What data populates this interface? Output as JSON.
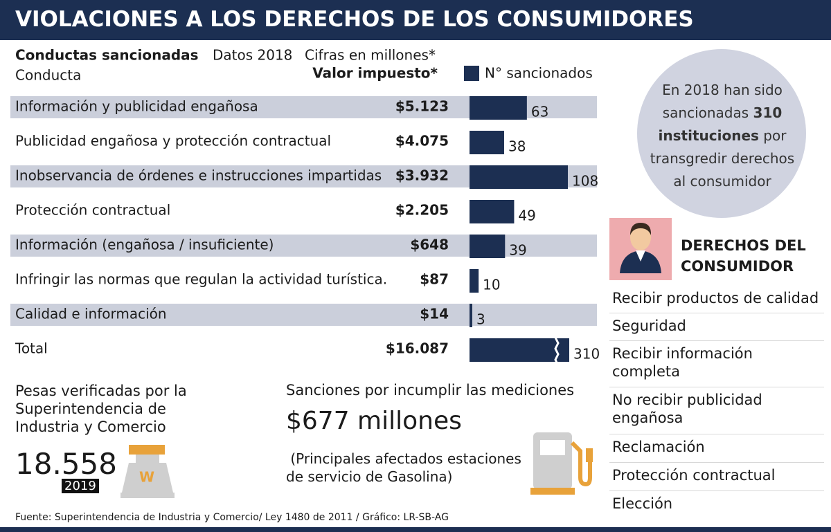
{
  "header": {
    "title": "VIOLACIONES A LOS DERECHOS DE LOS CONSUMIDORES"
  },
  "chart_data": {
    "type": "bar",
    "title": "Conductas sancionadas",
    "subtitle": "Datos 2018",
    "note": "Cifras en millones*",
    "category_header": "Conducta",
    "amount_header": "Valor impuesto*",
    "categories": [
      "Información y publicidad engañosa",
      "Publicidad engañosa y protección contractual",
      "Inobservancia de órdenes e instrucciones impartidas",
      "Protección contractual",
      "Información (engañosa / insuficiente)",
      "Infringir las normas que regulan la actividad turística.",
      "Calidad e información",
      "Total"
    ],
    "amounts": [
      5123,
      4075,
      3932,
      2205,
      648,
      87,
      14,
      16087
    ],
    "amount_labels": [
      "$5.123",
      "$4.075",
      "$3.932",
      "$2.205",
      "$648",
      "$87",
      "$14",
      "$16.087"
    ],
    "series": [
      {
        "name": "N° sancionados",
        "color": "#1c2f52",
        "values": [
          63,
          38,
          108,
          49,
          39,
          10,
          3,
          310
        ]
      }
    ],
    "band_color": "#cbcfdb"
  },
  "circle_note": {
    "before": "En 2018 han sido sancionadas",
    "bold": "310 instituciones",
    "after": "por transgredir derechos al consumidor"
  },
  "rights": {
    "title": [
      "DERECHOS DEL",
      "CONSUMIDOR"
    ],
    "items": [
      [
        "Recibir productos de calidad"
      ],
      [
        "Seguridad"
      ],
      [
        "Recibir información",
        "completa"
      ],
      [
        "No recibir publicidad",
        "engañosa"
      ],
      [
        "Reclamación"
      ],
      [
        "Protección contractual"
      ],
      [
        "Elección"
      ]
    ]
  },
  "weights": {
    "text": [
      "Pesas verificadas por la",
      "Superintendencia de",
      "Industria y Comercio"
    ],
    "value": "18.558",
    "year": "2019",
    "icon_label": "W"
  },
  "sanctions": {
    "heading": "Sanciones por incumplir las mediciones",
    "amount": "$677 millones",
    "note": [
      " (Principales afectados estaciones",
      "de servicio de Gasolina)"
    ]
  },
  "source": "Fuente:  Superintendencia de Industria y Comercio/ Ley 1480 de 2011 / Gráfico: LR-SB-AG"
}
